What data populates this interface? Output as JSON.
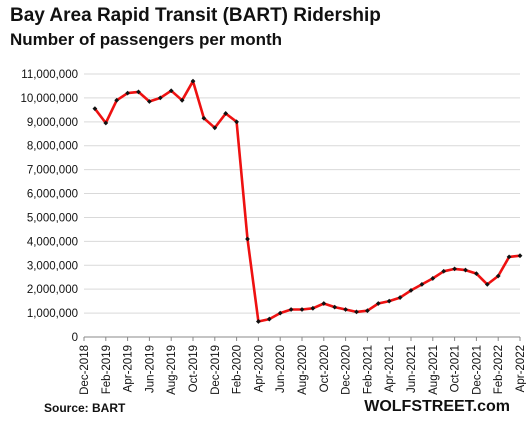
{
  "header": {
    "title": "Bay Area Rapid Transit (BART) Ridership",
    "subtitle": "Number of passengers per month"
  },
  "footer": {
    "source": "Source: BART",
    "brand": "WOLFSTREET.com"
  },
  "colors": {
    "line": "#ee1111",
    "marker": "#111111",
    "grid": "#d9d9d9",
    "axis": "#888888"
  },
  "chart_data": {
    "type": "line",
    "title": "Bay Area Rapid Transit (BART) Ridership",
    "subtitle": "Number of passengers per month",
    "xlabel": "",
    "ylabel": "",
    "ylim": [
      0,
      11000000
    ],
    "yticks": [
      0,
      1000000,
      2000000,
      3000000,
      4000000,
      5000000,
      6000000,
      7000000,
      8000000,
      9000000,
      10000000,
      11000000
    ],
    "ytick_labels": [
      "0",
      "1,000,000",
      "2,000,000",
      "3,000,000",
      "4,000,000",
      "5,000,000",
      "6,000,000",
      "7,000,000",
      "8,000,000",
      "9,000,000",
      "10,000,000",
      "11,000,000"
    ],
    "xtick_labels": [
      "Dec-2018",
      "Feb-2019",
      "Apr-2019",
      "Jun-2019",
      "Aug-2019",
      "Oct-2019",
      "Dec-2019",
      "Feb-2020",
      "Apr-2020",
      "Jun-2020",
      "Aug-2020",
      "Oct-2020",
      "Dec-2020",
      "Feb-2021",
      "Apr-2021",
      "Jun-2021",
      "Aug-2021",
      "Oct-2021",
      "Dec-2021",
      "Feb-2022",
      "Apr-2022"
    ],
    "grid": true,
    "series": [
      {
        "x": [
          "Jan-2019",
          "Feb-2019",
          "Mar-2019",
          "Apr-2019",
          "May-2019",
          "Jun-2019",
          "Jul-2019",
          "Aug-2019",
          "Sep-2019",
          "Oct-2019",
          "Nov-2019",
          "Dec-2019",
          "Jan-2020",
          "Feb-2020",
          "Mar-2020",
          "Apr-2020",
          "May-2020",
          "Jun-2020",
          "Jul-2020",
          "Aug-2020",
          "Sep-2020",
          "Oct-2020",
          "Nov-2020",
          "Dec-2020",
          "Jan-2021",
          "Feb-2021",
          "Mar-2021",
          "Apr-2021",
          "May-2021",
          "Jun-2021",
          "Jul-2021",
          "Aug-2021",
          "Sep-2021",
          "Oct-2021",
          "Nov-2021",
          "Dec-2021",
          "Jan-2022",
          "Feb-2022",
          "Mar-2022",
          "Apr-2022"
        ],
        "values": [
          9550000,
          8950000,
          9900000,
          10200000,
          10250000,
          9850000,
          10000000,
          10300000,
          9900000,
          10700000,
          9150000,
          8750000,
          9350000,
          9000000,
          4100000,
          650000,
          750000,
          1000000,
          1150000,
          1150000,
          1200000,
          1400000,
          1250000,
          1150000,
          1050000,
          1100000,
          1400000,
          1500000,
          1650000,
          1950000,
          2200000,
          2450000,
          2750000,
          2850000,
          2800000,
          2650000,
          2200000,
          2550000,
          3350000,
          3400000
        ]
      }
    ]
  }
}
